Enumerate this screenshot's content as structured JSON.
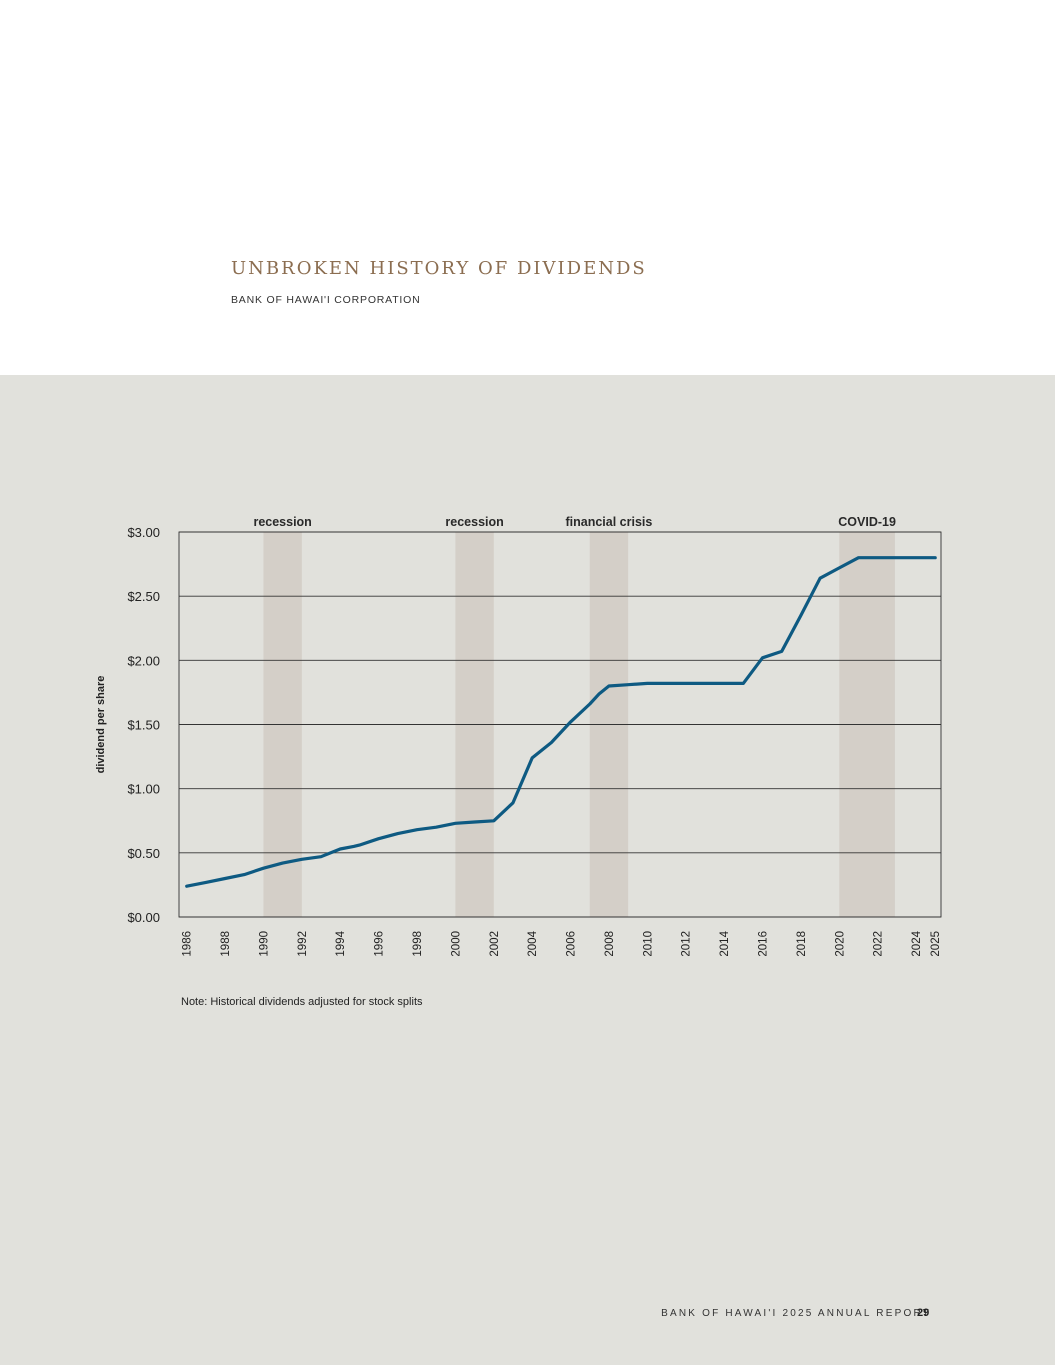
{
  "header": {
    "title": "UNBROKEN HISTORY OF DIVIDENDS",
    "subtitle": "BANK OF HAWAI'I CORPORATION"
  },
  "chart_data": {
    "type": "line",
    "title": "",
    "xlabel": "",
    "ylabel": "dividend per share",
    "ylim": [
      0,
      3.0
    ],
    "y_ticks": [
      0,
      0.5,
      1.0,
      1.5,
      2.0,
      2.5,
      3.0
    ],
    "y_tick_labels": [
      "$0.00",
      "$0.50",
      "$1.00",
      "$1.50",
      "$2.00",
      "$2.50",
      "$3.00"
    ],
    "x_tick_labels": [
      "1986",
      "1988",
      "1990",
      "1992",
      "1994",
      "1996",
      "1998",
      "2000",
      "2002",
      "2004",
      "2006",
      "2008",
      "2010",
      "2012",
      "2014",
      "2016",
      "2018",
      "2020",
      "2022",
      "2024",
      "2025"
    ],
    "grid": true,
    "series": [
      {
        "color": "#0e5a82",
        "x": [
          1986,
          1987,
          1988,
          1989,
          1990,
          1991,
          1992,
          1993,
          1994,
          1994.7,
          1995,
          1996,
          1997,
          1998,
          1999,
          2000,
          2001,
          2002,
          2003,
          2004,
          2005,
          2006,
          2007,
          2007.5,
          2008,
          2009,
          2010,
          2011,
          2012,
          2013,
          2014,
          2015,
          2016,
          2017,
          2018,
          2019,
          2020,
          2021,
          2022,
          2023,
          2024,
          2025
        ],
        "y": [
          0.24,
          0.27,
          0.3,
          0.33,
          0.38,
          0.42,
          0.45,
          0.47,
          0.53,
          0.55,
          0.56,
          0.61,
          0.65,
          0.68,
          0.7,
          0.73,
          0.74,
          0.75,
          0.89,
          1.24,
          1.36,
          1.52,
          1.66,
          1.74,
          1.8,
          1.81,
          1.82,
          1.82,
          1.82,
          1.82,
          1.82,
          1.82,
          2.02,
          2.07,
          2.35,
          2.64,
          2.72,
          2.8,
          2.8,
          2.8,
          2.8,
          2.8
        ]
      }
    ],
    "shaded_periods": [
      {
        "label": "recession",
        "start": 1990,
        "end": 1992
      },
      {
        "label": "recession",
        "start": 2000,
        "end": 2002
      },
      {
        "label": "financial crisis",
        "start": 2007,
        "end": 2009
      },
      {
        "label": "COVID-19",
        "start": 2020,
        "end": 2022.9
      }
    ],
    "colors": {
      "line": "#0e5a82",
      "shade": "#d4cfc8",
      "background": "#e1e1dc",
      "grid": "#333333"
    }
  },
  "note": "Note: Historical dividends adjusted for stock splits",
  "footer": {
    "text": "BANK OF HAWAI'I 2025 ANNUAL REPORT",
    "page": "29"
  }
}
